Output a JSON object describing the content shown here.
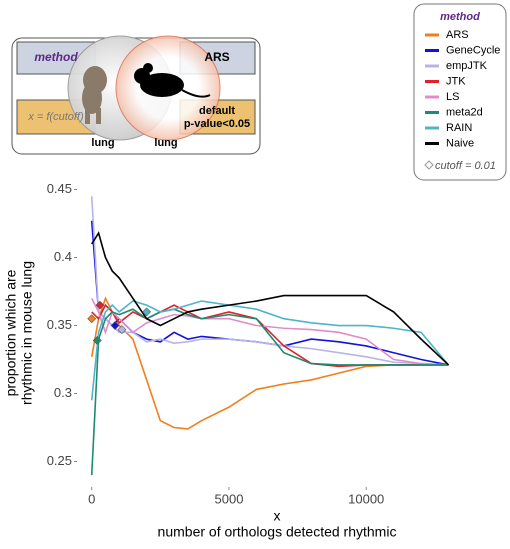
{
  "inset": {
    "left_label": "method",
    "left_sub": "x = f(cutoff)",
    "right_label": "ARS",
    "right_sub": [
      "default",
      "p-value<0.05"
    ],
    "organ_left": "lung",
    "organ_right": "lung"
  },
  "legend": {
    "title": "method",
    "note": "cutoff = 0.01"
  },
  "chart_data": {
    "type": "line",
    "x_label": [
      "x",
      "number of orthologs detected rhythmic"
    ],
    "y_label": [
      "proportion which are",
      "rhythmic in mouse lung"
    ],
    "x": [
      0,
      250,
      500,
      750,
      1000,
      1500,
      2000,
      2500,
      3000,
      3500,
      4000,
      5000,
      6000,
      7000,
      8000,
      9000,
      10000,
      11000,
      12000,
      13000
    ],
    "xlim": [
      -500,
      14000
    ],
    "ylim": [
      0.232,
      0.457
    ],
    "xticks": [
      0,
      5000,
      10000
    ],
    "yticks": [
      0.25,
      0.3,
      0.35,
      0.4,
      0.45
    ],
    "series": [
      {
        "name": "ARS",
        "color": "#f07f1e",
        "values": [
          0.327,
          0.355,
          0.37,
          0.36,
          0.35,
          0.34,
          0.31,
          0.28,
          0.275,
          0.274,
          0.28,
          0.29,
          0.303,
          0.307,
          0.31,
          0.315,
          0.32,
          0.321,
          0.321,
          0.321
        ],
        "cutoff_point": {
          "x": 0,
          "y": 0.355
        }
      },
      {
        "name": "GeneCycle",
        "color": "#1212e0",
        "values": [
          0.427,
          0.36,
          0.355,
          0.35,
          0.355,
          0.345,
          0.34,
          0.338,
          0.345,
          0.34,
          0.342,
          0.34,
          0.338,
          0.335,
          0.34,
          0.338,
          0.335,
          0.33,
          0.325,
          0.321
        ],
        "cutoff_point": {
          "x": 850,
          "y": 0.35
        }
      },
      {
        "name": "empJTK",
        "color": "#b8b4e6",
        "values": [
          0.445,
          0.36,
          0.355,
          0.35,
          0.345,
          0.345,
          0.338,
          0.34,
          0.337,
          0.338,
          0.34,
          0.34,
          0.338,
          0.335,
          0.333,
          0.33,
          0.327,
          0.323,
          0.322,
          0.321
        ],
        "cutoff_point": {
          "x": 1100,
          "y": 0.347
        }
      },
      {
        "name": "JTK",
        "color": "#e0202a",
        "values": [
          0.36,
          0.355,
          0.365,
          0.36,
          0.352,
          0.36,
          0.355,
          0.36,
          0.365,
          0.36,
          0.355,
          0.36,
          0.355,
          0.335,
          0.322,
          0.32,
          0.321,
          0.321,
          0.321,
          0.321
        ],
        "cutoff_point": {
          "x": 300,
          "y": 0.365
        }
      },
      {
        "name": "LS",
        "color": "#e08ccc",
        "values": [
          0.37,
          0.36,
          0.345,
          0.36,
          0.355,
          0.345,
          0.352,
          0.355,
          0.358,
          0.357,
          0.355,
          0.355,
          0.35,
          0.348,
          0.347,
          0.345,
          0.34,
          0.325,
          0.322,
          0.321
        ],
        "cutoff_point": null
      },
      {
        "name": "meta2d",
        "color": "#1e8a6e",
        "values": [
          0.24,
          0.34,
          0.355,
          0.36,
          0.358,
          0.362,
          0.355,
          0.36,
          0.362,
          0.358,
          0.355,
          0.358,
          0.355,
          0.33,
          0.322,
          0.321,
          0.321,
          0.321,
          0.321,
          0.321
        ],
        "cutoff_point": {
          "x": 200,
          "y": 0.339
        }
      },
      {
        "name": "RAIN",
        "color": "#4fb4c8",
        "values": [
          0.295,
          0.345,
          0.36,
          0.365,
          0.36,
          0.368,
          0.365,
          0.36,
          0.362,
          0.365,
          0.368,
          0.365,
          0.362,
          0.355,
          0.352,
          0.35,
          0.35,
          0.348,
          0.345,
          0.321
        ],
        "cutoff_point": {
          "x": 2000,
          "y": 0.36
        }
      },
      {
        "name": "Naive",
        "color": "#000000",
        "values": [
          0.41,
          0.418,
          0.4,
          0.39,
          0.385,
          0.37,
          0.355,
          0.35,
          0.355,
          0.36,
          0.362,
          0.365,
          0.368,
          0.372,
          0.372,
          0.372,
          0.372,
          0.36,
          0.34,
          0.321
        ],
        "cutoff_point": null
      }
    ]
  }
}
